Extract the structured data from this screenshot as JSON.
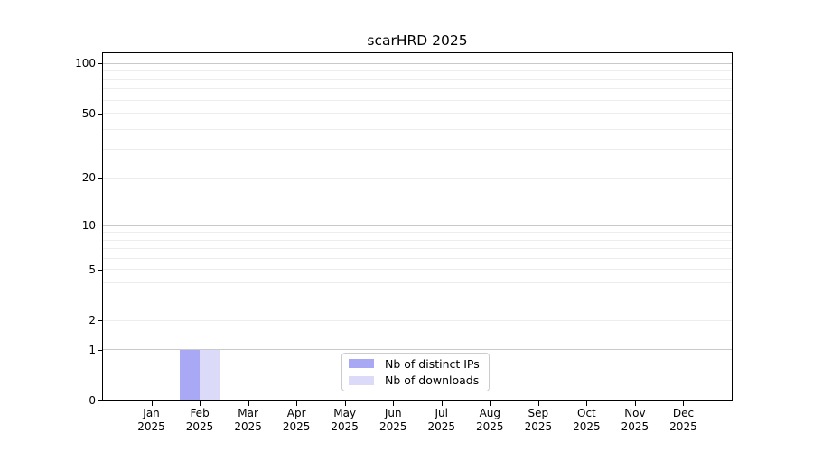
{
  "window": {
    "background": "#ffffff"
  },
  "chart_data": {
    "type": "bar",
    "title": "scarHRD 2025",
    "categories": [
      "Jan",
      "Feb",
      "Mar",
      "Apr",
      "May",
      "Jun",
      "Jul",
      "Aug",
      "Sep",
      "Oct",
      "Nov",
      "Dec"
    ],
    "x_year_label": "2025",
    "series": [
      {
        "name": "Nb of distinct IPs",
        "color": "#a8a8f5",
        "values": [
          0,
          1,
          0,
          0,
          0,
          0,
          0,
          0,
          0,
          0,
          0,
          0
        ]
      },
      {
        "name": "Nb of downloads",
        "color": "#dbdbf9",
        "values": [
          0,
          1,
          0,
          0,
          0,
          0,
          0,
          0,
          0,
          0,
          0,
          0
        ]
      }
    ],
    "xlabel": "",
    "ylabel": "",
    "y_scale": "log1p",
    "ylim": [
      0,
      115
    ],
    "y_ticks": [
      0,
      1,
      2,
      5,
      10,
      20,
      50,
      100
    ],
    "grid_major": [
      1,
      10,
      100
    ],
    "grid_minor": [
      2,
      3,
      4,
      5,
      6,
      7,
      8,
      9,
      20,
      30,
      40,
      50,
      60,
      70,
      80,
      90
    ],
    "grid_on": true,
    "legend_position": "bottom-center",
    "colors": {
      "spine": "#000000",
      "grid_major": "#c9c9c9",
      "grid_minor": "#ededed",
      "background": "#ffffff"
    }
  }
}
